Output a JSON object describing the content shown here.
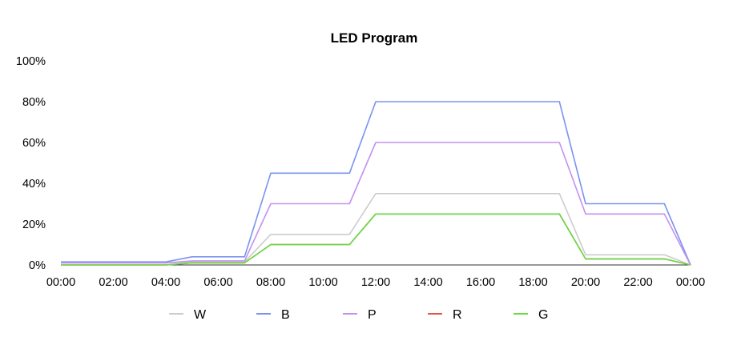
{
  "chart_data": {
    "type": "line",
    "title": "LED Program",
    "xlabel": "",
    "ylabel": "",
    "ylim": [
      0,
      100
    ],
    "y_ticks": [
      "0%",
      "20%",
      "40%",
      "60%",
      "80%",
      "100%"
    ],
    "x_ticks": [
      "00:00",
      "02:00",
      "04:00",
      "06:00",
      "08:00",
      "10:00",
      "12:00",
      "14:00",
      "16:00",
      "18:00",
      "20:00",
      "22:00",
      "00:00"
    ],
    "x_hours": [
      0,
      4,
      5,
      7,
      8,
      11,
      12,
      19,
      20,
      23,
      24
    ],
    "grid": false,
    "legend_position": "bottom",
    "series": [
      {
        "name": "W",
        "color": "#cccccc",
        "values": [
          1,
          1,
          1.5,
          1.5,
          15,
          15,
          35,
          35,
          5,
          5,
          0
        ]
      },
      {
        "name": "B",
        "color": "#7b93f0",
        "values": [
          1.5,
          1.5,
          4,
          4,
          45,
          45,
          80,
          80,
          30,
          30,
          0
        ]
      },
      {
        "name": "P",
        "color": "#c491f0",
        "values": [
          1,
          1,
          2,
          2,
          30,
          30,
          60,
          60,
          25,
          25,
          0
        ]
      },
      {
        "name": "R",
        "color": "#e05545",
        "values": [
          0,
          0,
          1,
          1,
          10,
          10,
          25,
          25,
          3,
          3,
          0
        ]
      },
      {
        "name": "G",
        "color": "#66dd44",
        "values": [
          0,
          0,
          1,
          1,
          10,
          10,
          25,
          25,
          3,
          3,
          0
        ]
      }
    ]
  }
}
